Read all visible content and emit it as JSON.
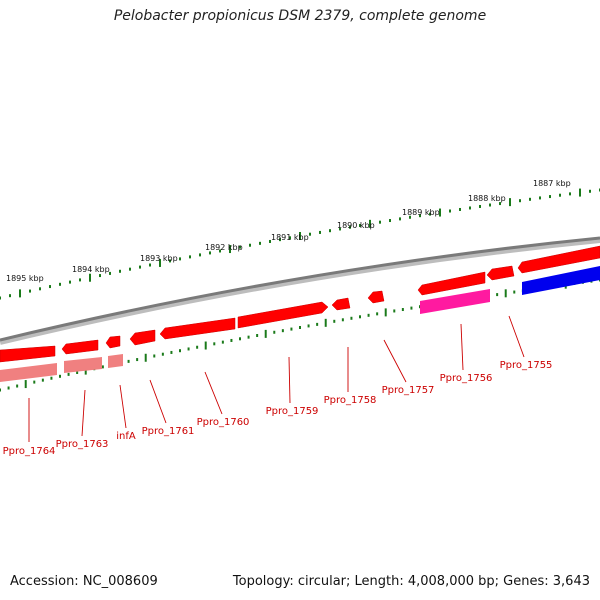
{
  "title": "Pelobacter propionicus DSM 2379, complete genome",
  "accession": "Accession: NC_008609",
  "summary": "Topology: circular; Length: 4,008,000 bp; Genes: 3,643",
  "colors": {
    "backbone": "#808080",
    "tick": "#1a7a1a",
    "gene_forward": "#ff0000",
    "gene_faded": "#f08080",
    "gene_magenta": "#ff1aa0",
    "gene_blue": "#0000ee",
    "label": "#cc0000"
  },
  "kbp_ruler": [
    "1895 kbp",
    "1894 kbp",
    "1893 kbp",
    "1892 kbp",
    "1891 kbp",
    "1890 kbp",
    "1889 kbp",
    "1888 kbp",
    "1887 kbp"
  ],
  "genes": [
    {
      "label": "Ppro_1764",
      "color": "gene_forward"
    },
    {
      "label": "Ppro_1763",
      "color": "gene_forward"
    },
    {
      "label": "infA",
      "color": "gene_forward"
    },
    {
      "label": "Ppro_1761",
      "color": "gene_forward"
    },
    {
      "label": "Ppro_1760",
      "color": "gene_forward"
    },
    {
      "label": "Ppro_1759",
      "color": "gene_forward"
    },
    {
      "label": "Ppro_1758",
      "color": "gene_forward"
    },
    {
      "label": "Ppro_1757",
      "color": "gene_forward"
    },
    {
      "label": "Ppro_1756",
      "color": "gene_magenta"
    },
    {
      "label": "Ppro_1755",
      "color": "gene_forward"
    }
  ]
}
